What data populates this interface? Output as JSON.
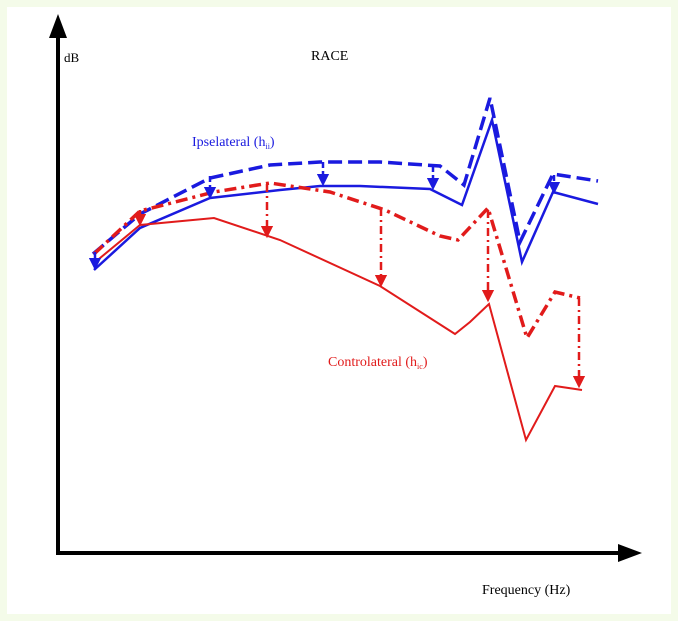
{
  "title": "RACE",
  "y_axis_label": "dB",
  "x_axis_label": "Frequency (Hz)",
  "ipsilateral_label": {
    "main": "Ipselateral (h",
    "sub": "ii",
    "close": ")"
  },
  "contralateral_label": {
    "main": "Controlateral (h",
    "sub": "ic",
    "close": ")"
  },
  "colors": {
    "ipsilateral": "#1a1adf",
    "contralateral": "#e11b1b",
    "axis": "#000000",
    "background": "#f4fbe9"
  }
}
